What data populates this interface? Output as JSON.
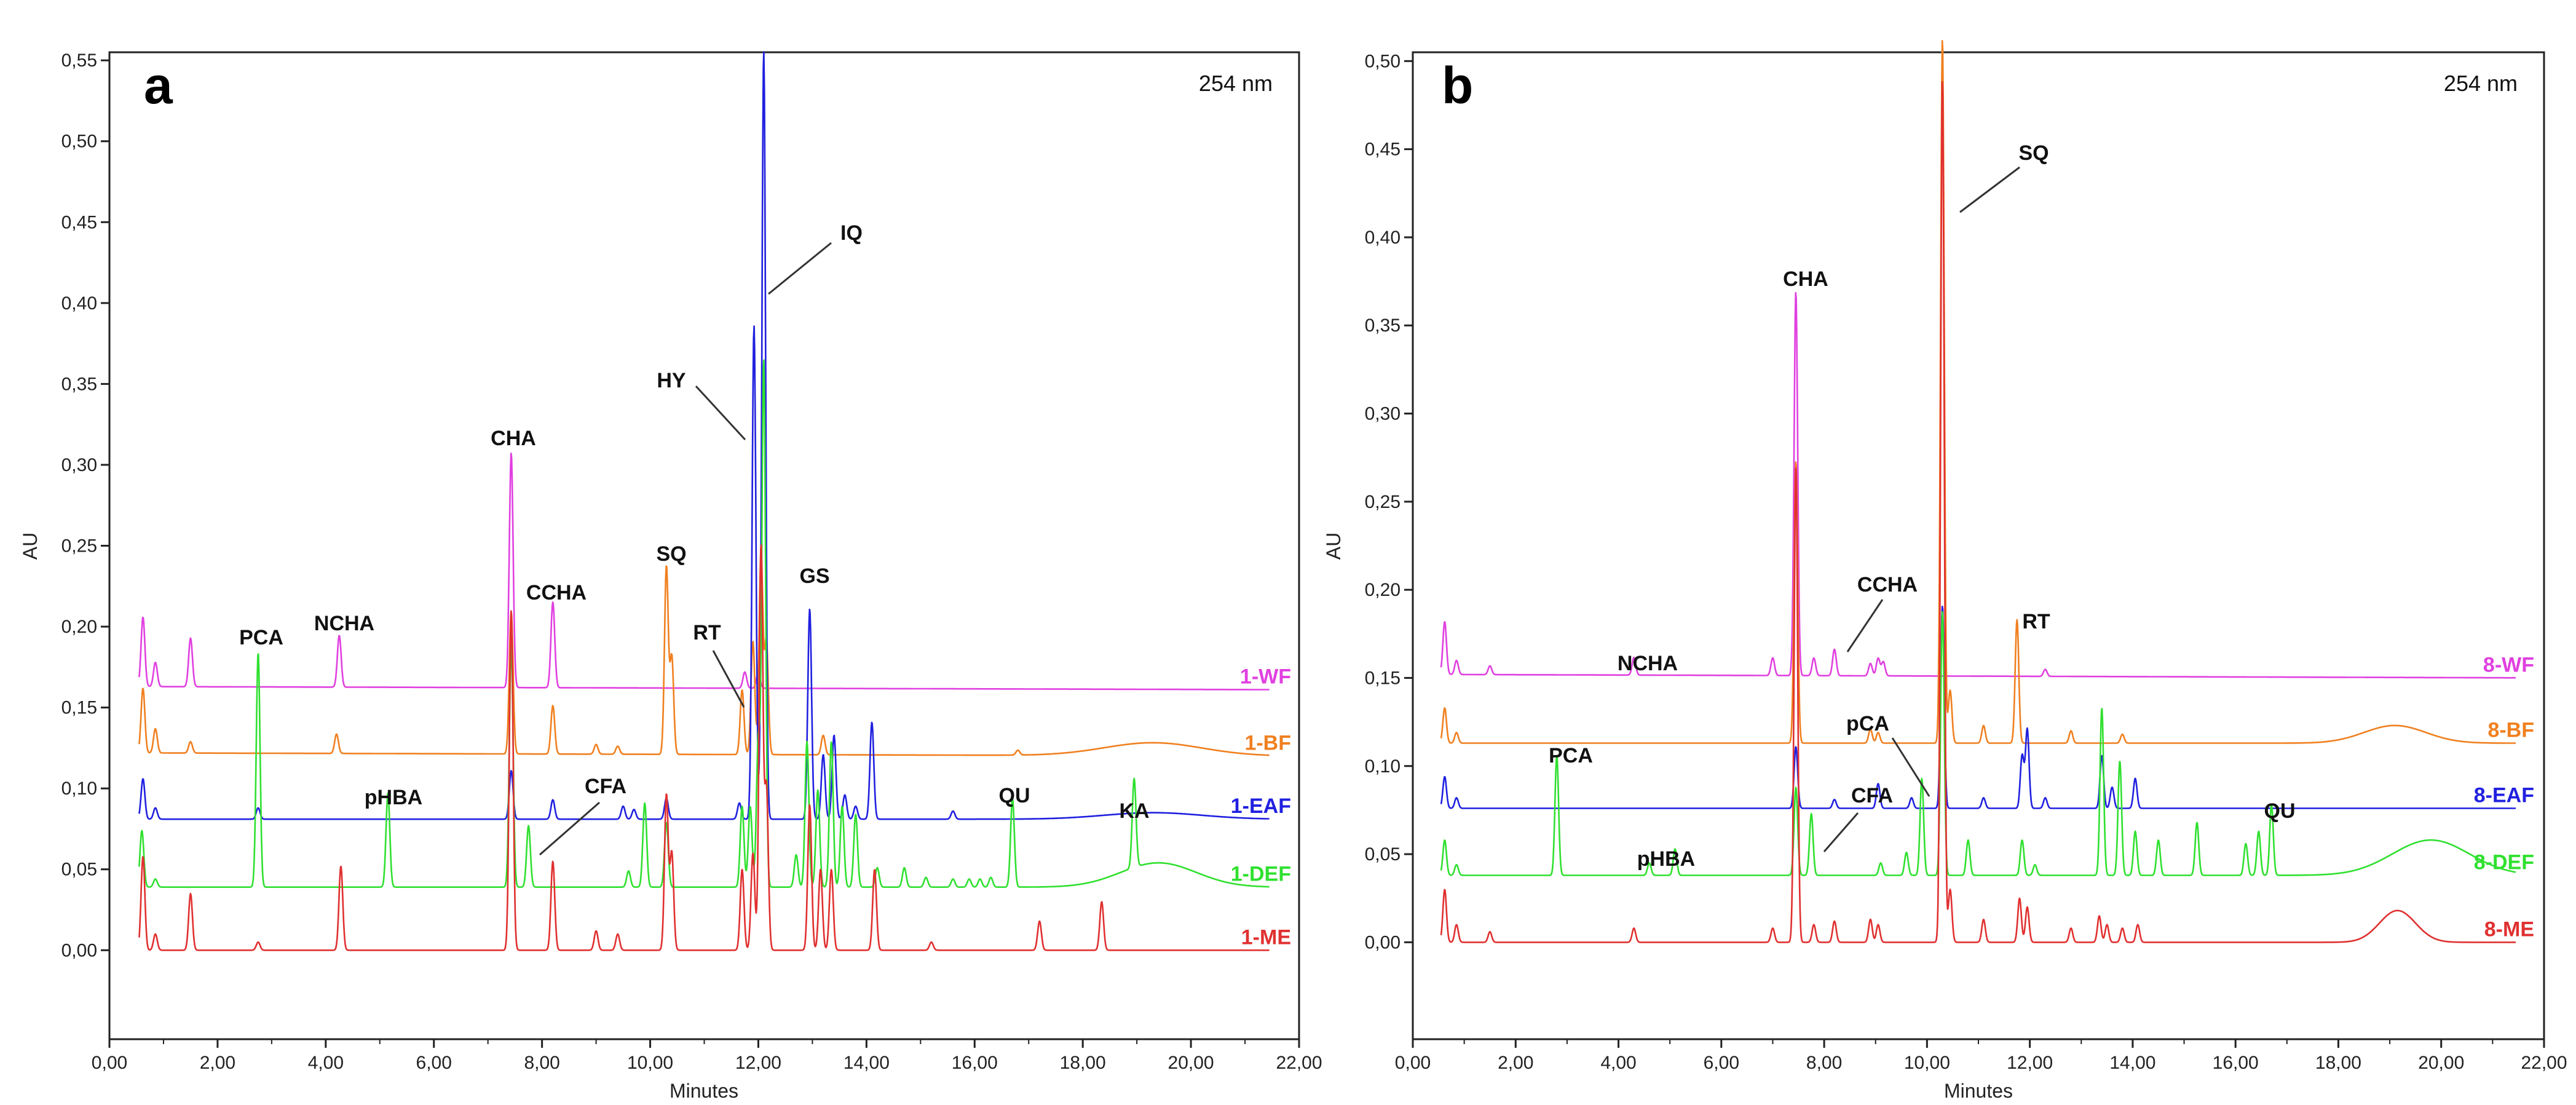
{
  "chart_data": [
    {
      "type": "line",
      "panel_letter": "a",
      "wavelength_label": "254 nm",
      "xlabel": "Minutes",
      "ylabel": "AU",
      "xlim": [
        0,
        22
      ],
      "ylim": [
        -0.055,
        0.555
      ],
      "x_ticks": [
        "0,00",
        "2,00",
        "4,00",
        "6,00",
        "8,00",
        "10,00",
        "12,00",
        "14,00",
        "16,00",
        "18,00",
        "20,00",
        "22,00"
      ],
      "y_ticks": [
        "0,00",
        "0,05",
        "0,10",
        "0,15",
        "0,20",
        "0,25",
        "0,30",
        "0,35",
        "0,40",
        "0,45",
        "0,50",
        "0,55"
      ],
      "series": [
        {
          "name": "1-WF",
          "color": "#e040e0",
          "baseline": 0.163,
          "drift": -0.002,
          "peaks": [
            [
              0.62,
              0.043
            ],
            [
              0.85,
              0.015
            ],
            [
              1.5,
              0.03
            ],
            [
              4.25,
              0.032
            ],
            [
              7.43,
              0.145
            ],
            [
              8.2,
              0.053
            ],
            [
              11.75,
              0.01
            ],
            [
              12.0,
              0.01
            ]
          ]
        },
        {
          "name": "1-BF",
          "color": "#f08020",
          "baseline": 0.122,
          "drift": -0.002,
          "peaks": [
            [
              0.62,
              0.04
            ],
            [
              0.85,
              0.015
            ],
            [
              1.5,
              0.007
            ],
            [
              4.2,
              0.012
            ],
            [
              7.43,
              0.088
            ],
            [
              8.2,
              0.03
            ],
            [
              9.0,
              0.006
            ],
            [
              9.4,
              0.005
            ],
            [
              10.3,
              0.116
            ],
            [
              10.4,
              0.06
            ],
            [
              11.7,
              0.04
            ],
            [
              11.9,
              0.07
            ],
            [
              12.05,
              0.125
            ],
            [
              12.15,
              0.07
            ],
            [
              13.2,
              0.012
            ],
            [
              16.8,
              0.003
            ]
          ],
          "hump": [
            19.3,
            0.008,
            0.9
          ]
        },
        {
          "name": "1-EAF",
          "color": "#2020e0",
          "baseline": 0.081,
          "drift": 0.0,
          "peaks": [
            [
              0.62,
              0.025
            ],
            [
              0.85,
              0.007
            ],
            [
              2.75,
              0.007
            ],
            [
              7.43,
              0.03
            ],
            [
              8.2,
              0.012
            ],
            [
              9.5,
              0.008
            ],
            [
              9.7,
              0.006
            ],
            [
              10.3,
              0.013
            ],
            [
              11.65,
              0.01
            ],
            [
              11.92,
              0.305
            ],
            [
              12.1,
              0.475
            ],
            [
              12.95,
              0.13
            ],
            [
              13.2,
              0.04
            ],
            [
              13.4,
              0.052
            ],
            [
              13.6,
              0.015
            ],
            [
              13.8,
              0.008
            ],
            [
              14.1,
              0.06
            ],
            [
              15.6,
              0.005
            ]
          ],
          "hump": [
            19.3,
            0.004,
            0.9
          ]
        },
        {
          "name": "1-DEF",
          "color": "#30e030",
          "baseline": 0.039,
          "drift": 0.0,
          "peaks": [
            [
              0.6,
              0.035
            ],
            [
              0.85,
              0.005
            ],
            [
              2.75,
              0.145
            ],
            [
              5.15,
              0.058
            ],
            [
              7.43,
              0.15
            ],
            [
              7.75,
              0.038
            ],
            [
              9.6,
              0.01
            ],
            [
              9.9,
              0.052
            ],
            [
              10.3,
              0.04
            ],
            [
              11.7,
              0.05
            ],
            [
              11.85,
              0.05
            ],
            [
              12.0,
              0.09
            ],
            [
              12.1,
              0.325
            ],
            [
              12.7,
              0.02
            ],
            [
              12.9,
              0.09
            ],
            [
              13.1,
              0.06
            ],
            [
              13.35,
              0.09
            ],
            [
              13.55,
              0.05
            ],
            [
              13.8,
              0.045
            ],
            [
              14.2,
              0.012
            ],
            [
              14.7,
              0.012
            ],
            [
              15.1,
              0.006
            ],
            [
              15.6,
              0.005
            ],
            [
              15.9,
              0.005
            ],
            [
              16.1,
              0.005
            ],
            [
              16.3,
              0.006
            ],
            [
              16.7,
              0.055
            ],
            [
              18.95,
              0.055
            ]
          ],
          "hump": [
            19.4,
            0.015,
            0.7
          ]
        },
        {
          "name": "1-ME",
          "color": "#e03030",
          "baseline": 0.0,
          "drift": 0.0,
          "peaks": [
            [
              0.62,
              0.058
            ],
            [
              0.85,
              0.01
            ],
            [
              1.5,
              0.035
            ],
            [
              2.75,
              0.005
            ],
            [
              4.28,
              0.052
            ],
            [
              7.43,
              0.21
            ],
            [
              8.2,
              0.055
            ],
            [
              9.0,
              0.012
            ],
            [
              9.4,
              0.01
            ],
            [
              10.3,
              0.096
            ],
            [
              10.4,
              0.06
            ],
            [
              11.7,
              0.05
            ],
            [
              11.9,
              0.06
            ],
            [
              12.05,
              0.25
            ],
            [
              12.15,
              0.1
            ],
            [
              12.95,
              0.09
            ],
            [
              13.15,
              0.05
            ],
            [
              13.35,
              0.05
            ],
            [
              14.15,
              0.05
            ],
            [
              15.2,
              0.005
            ],
            [
              17.2,
              0.018
            ],
            [
              18.35,
              0.03
            ]
          ]
        }
      ],
      "annotations": [
        "PCA",
        "NCHA",
        "pHBA",
        "CHA",
        "CCHA",
        "CFA",
        "SQ",
        "RT",
        "HY",
        "IQ",
        "GS",
        "QU",
        "KA"
      ]
    },
    {
      "type": "line",
      "panel_letter": "b",
      "wavelength_label": "254 nm",
      "xlabel": "Minutes",
      "ylabel": "AU",
      "xlim": [
        0,
        22
      ],
      "ylim": [
        -0.055,
        0.505
      ],
      "x_ticks": [
        "0,00",
        "2,00",
        "4,00",
        "6,00",
        "8,00",
        "10,00",
        "12,00",
        "14,00",
        "16,00",
        "18,00",
        "20,00",
        "22,00"
      ],
      "y_ticks": [
        "0,00",
        "0,05",
        "0,10",
        "0,15",
        "0,20",
        "0,25",
        "0,30",
        "0,35",
        "0,40",
        "0,45",
        "0,50"
      ],
      "series": [
        {
          "name": "8-WF",
          "color": "#e040e0",
          "baseline": 0.152,
          "drift": -0.002,
          "peaks": [
            [
              0.62,
              0.03
            ],
            [
              0.85,
              0.008
            ],
            [
              1.5,
              0.005
            ],
            [
              4.3,
              0.01
            ],
            [
              7.0,
              0.01
            ],
            [
              7.45,
              0.218
            ],
            [
              7.8,
              0.01
            ],
            [
              8.2,
              0.015
            ],
            [
              8.9,
              0.007
            ],
            [
              9.05,
              0.01
            ],
            [
              9.15,
              0.008
            ],
            [
              12.3,
              0.004
            ]
          ]
        },
        {
          "name": "8-BF",
          "color": "#f08020",
          "baseline": 0.113,
          "drift": 0.0,
          "peaks": [
            [
              0.62,
              0.02
            ],
            [
              0.85,
              0.006
            ],
            [
              7.45,
              0.16
            ],
            [
              8.9,
              0.008
            ],
            [
              9.05,
              0.006
            ],
            [
              10.3,
              0.4
            ],
            [
              10.45,
              0.03
            ],
            [
              11.1,
              0.01
            ],
            [
              11.75,
              0.07
            ],
            [
              12.8,
              0.007
            ],
            [
              13.8,
              0.005
            ]
          ],
          "hump": [
            19.1,
            0.01,
            0.6
          ]
        },
        {
          "name": "8-EAF",
          "color": "#2020e0",
          "baseline": 0.076,
          "drift": 0.0,
          "peaks": [
            [
              0.62,
              0.018
            ],
            [
              0.85,
              0.006
            ],
            [
              7.45,
              0.035
            ],
            [
              8.2,
              0.005
            ],
            [
              9.05,
              0.014
            ],
            [
              9.7,
              0.006
            ],
            [
              10.3,
              0.115
            ],
            [
              11.1,
              0.006
            ],
            [
              11.85,
              0.03
            ],
            [
              11.95,
              0.045
            ],
            [
              12.3,
              0.006
            ],
            [
              13.4,
              0.03
            ],
            [
              13.6,
              0.012
            ],
            [
              14.05,
              0.017
            ]
          ]
        },
        {
          "name": "8-DEF",
          "color": "#30e030",
          "baseline": 0.038,
          "drift": 0.0,
          "peaks": [
            [
              0.62,
              0.02
            ],
            [
              0.85,
              0.006
            ],
            [
              2.8,
              0.068
            ],
            [
              4.6,
              0.007
            ],
            [
              5.1,
              0.015
            ],
            [
              7.45,
              0.05
            ],
            [
              7.75,
              0.035
            ],
            [
              9.1,
              0.007
            ],
            [
              9.6,
              0.013
            ],
            [
              9.9,
              0.055
            ],
            [
              10.3,
              0.15
            ],
            [
              10.8,
              0.02
            ],
            [
              11.85,
              0.02
            ],
            [
              12.1,
              0.006
            ],
            [
              13.4,
              0.095
            ],
            [
              13.75,
              0.065
            ],
            [
              14.05,
              0.025
            ],
            [
              14.5,
              0.02
            ],
            [
              15.25,
              0.03
            ],
            [
              16.2,
              0.018
            ],
            [
              16.45,
              0.025
            ],
            [
              16.7,
              0.04
            ]
          ],
          "hump": [
            19.8,
            0.02,
            0.75
          ]
        },
        {
          "name": "8-ME",
          "color": "#e03030",
          "baseline": 0.0,
          "drift": 0.0,
          "peaks": [
            [
              0.62,
              0.03
            ],
            [
              0.85,
              0.01
            ],
            [
              1.5,
              0.006
            ],
            [
              4.3,
              0.008
            ],
            [
              7.0,
              0.008
            ],
            [
              7.45,
              0.27
            ],
            [
              7.8,
              0.01
            ],
            [
              8.2,
              0.012
            ],
            [
              8.9,
              0.013
            ],
            [
              9.05,
              0.01
            ],
            [
              10.3,
              0.49
            ],
            [
              10.45,
              0.03
            ],
            [
              11.1,
              0.013
            ],
            [
              11.8,
              0.025
            ],
            [
              11.95,
              0.02
            ],
            [
              12.8,
              0.008
            ],
            [
              13.35,
              0.015
            ],
            [
              13.5,
              0.01
            ],
            [
              13.8,
              0.008
            ],
            [
              14.1,
              0.01
            ]
          ],
          "hump": [
            19.15,
            0.018,
            0.35
          ]
        }
      ],
      "annotations": [
        "PCA",
        "NCHA",
        "pHBA",
        "CHA",
        "CCHA",
        "CFA",
        "pCA",
        "SQ",
        "RT",
        "QU"
      ]
    }
  ]
}
